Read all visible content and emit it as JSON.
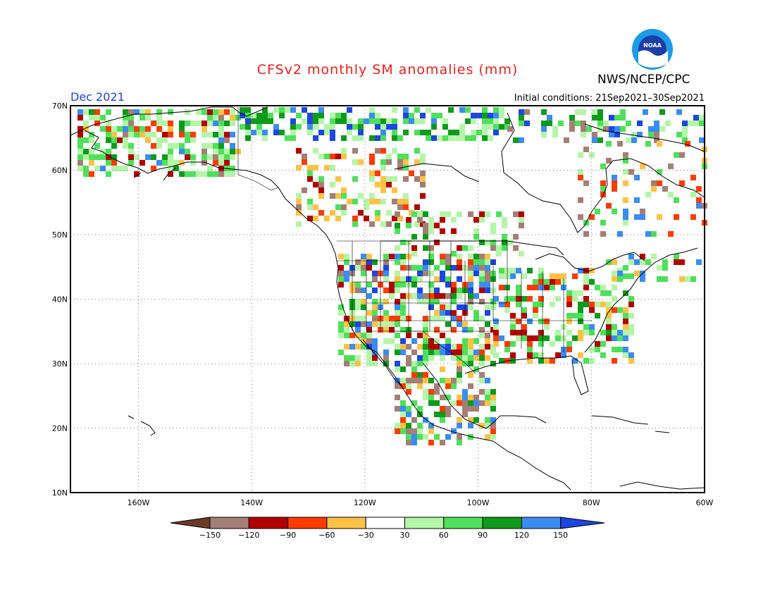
{
  "header": {
    "title": "CFSv2 monthly SM anomalies (mm)",
    "month": "Dec 2021",
    "initial_conditions": "Initial conditions: 21Sep2021–30Sep2021",
    "agency": "NWS/NCEP/CPC",
    "logo_text": "NOAA"
  },
  "map": {
    "lon_range": [
      -172,
      -60
    ],
    "lat_range": [
      10,
      70
    ],
    "lat_labels": [
      "70N",
      "60N",
      "50N",
      "40N",
      "30N",
      "20N",
      "10N"
    ],
    "lon_labels": [
      "160W",
      "140W",
      "120W",
      "100W",
      "80W",
      "60W"
    ],
    "grid": "dotted"
  },
  "colorbar": {
    "levels": [
      "−150",
      "−120",
      "−90",
      "−60",
      "−30",
      "30",
      "60",
      "90",
      "120",
      "150"
    ],
    "colors": [
      "#6b3b2a",
      "#a47f76",
      "#b20000",
      "#ff3b00",
      "#ffc247",
      "#ffffff",
      "#b4f5a8",
      "#4ee05a",
      "#0f9a1c",
      "#3a8cf0",
      "#1e46e0"
    ]
  }
}
